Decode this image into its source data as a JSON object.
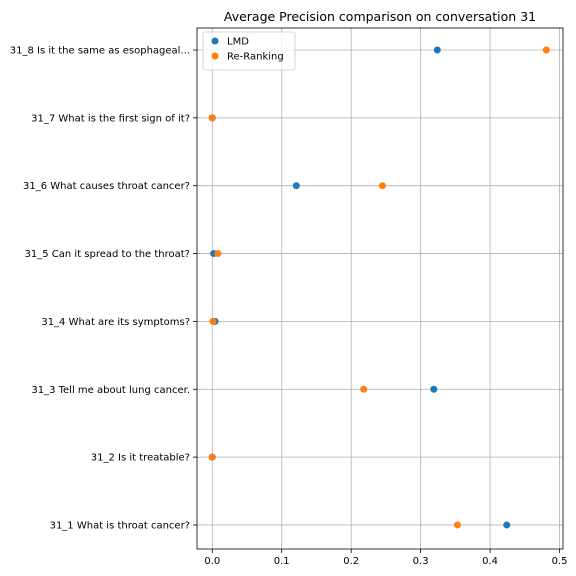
{
  "chart_data": {
    "type": "scatter",
    "title": "Average Precision comparison on conversation 31",
    "xlabel": "",
    "ylabel": "",
    "xlim": [
      -0.022,
      0.505
    ],
    "xticks": [
      0.0,
      0.1,
      0.2,
      0.3,
      0.4,
      0.5
    ],
    "xtick_labels": [
      "0.0",
      "0.1",
      "0.2",
      "0.3",
      "0.4",
      "0.5"
    ],
    "grid": true,
    "legend_position": "upper-left",
    "categories": [
      "31_1 What is throat cancer?",
      "31_2 Is it treatable?",
      "31_3 Tell me about lung cancer.",
      "31_4 What are its symptoms?",
      "31_5 Can it spread to the throat?",
      "31_6 What causes throat cancer?",
      "31_7 What is the first sign of it?",
      "31_8 Is it the same as esophageal..."
    ],
    "series": [
      {
        "name": "LMD",
        "color": "#1f77b4",
        "values": [
          0.424,
          0.0,
          0.319,
          0.004,
          0.002,
          0.121,
          0.0,
          0.324
        ]
      },
      {
        "name": "Re-Ranking",
        "color": "#ff7f0e",
        "values": [
          0.353,
          0.0,
          0.218,
          0.001,
          0.008,
          0.245,
          0.0,
          0.481
        ]
      }
    ]
  }
}
